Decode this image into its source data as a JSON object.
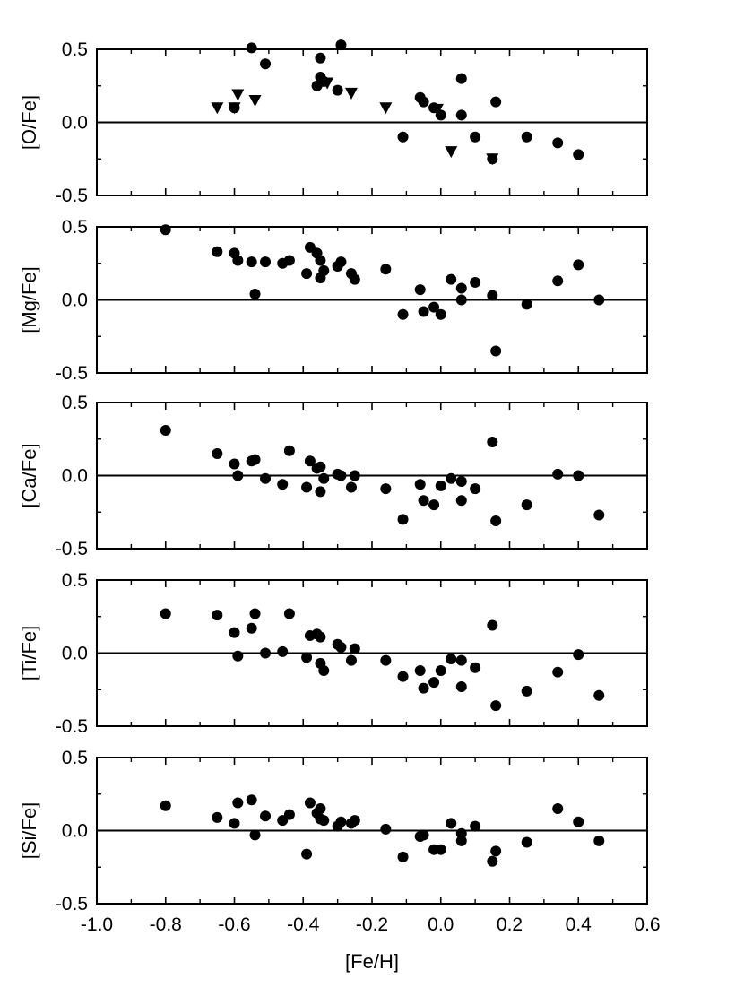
{
  "chart_data": {
    "type": "scatter",
    "shared_x": {
      "label": "[Fe/H]",
      "range": [
        -1.0,
        0.6
      ],
      "ticks": [
        -1.0,
        -0.8,
        -0.6,
        -0.4,
        -0.2,
        0.0,
        0.2,
        0.4,
        0.6
      ],
      "tick_labels": [
        "-1.0",
        "-0.8",
        "-0.6",
        "-0.4",
        "-0.2",
        "0.0",
        "0.2",
        "0.4",
        "0.6"
      ]
    },
    "panels": [
      {
        "ylabel": "[O/Fe]",
        "ylim": [
          -0.5,
          0.5
        ],
        "yticks": [
          -0.5,
          0.0,
          0.5
        ],
        "ytick_labels": [
          "-0.5",
          "0.0",
          "0.5"
        ],
        "zero_line": true,
        "series": [
          {
            "marker": "circle",
            "points": [
              [
                -0.55,
                0.51
              ],
              [
                -0.51,
                0.4
              ],
              [
                -0.6,
                0.1
              ],
              [
                -0.35,
                0.44
              ],
              [
                -0.35,
                0.31
              ],
              [
                -0.36,
                0.25
              ],
              [
                -0.34,
                0.28
              ],
              [
                -0.29,
                0.53
              ],
              [
                -0.3,
                0.22
              ],
              [
                -0.11,
                -0.1
              ],
              [
                -0.06,
                0.17
              ],
              [
                -0.05,
                0.14
              ],
              [
                -0.02,
                0.1
              ],
              [
                0.0,
                0.05
              ],
              [
                0.06,
                0.3
              ],
              [
                0.06,
                0.05
              ],
              [
                0.1,
                -0.1
              ],
              [
                0.16,
                0.14
              ],
              [
                0.15,
                -0.25
              ],
              [
                0.25,
                -0.1
              ],
              [
                0.34,
                -0.14
              ],
              [
                0.4,
                -0.22
              ]
            ]
          },
          {
            "marker": "triangle-down",
            "points": [
              [
                -0.65,
                0.1
              ],
              [
                -0.6,
                0.1
              ],
              [
                -0.59,
                0.19
              ],
              [
                -0.54,
                0.15
              ],
              [
                -0.33,
                0.27
              ],
              [
                -0.26,
                0.2
              ],
              [
                -0.16,
                0.1
              ],
              [
                -0.01,
                0.09
              ],
              [
                0.03,
                -0.2
              ],
              [
                0.15,
                -0.25
              ]
            ]
          }
        ]
      },
      {
        "ylabel": "[Mg/Fe]",
        "ylim": [
          -0.5,
          0.5
        ],
        "yticks": [
          -0.5,
          0.0,
          0.5
        ],
        "ytick_labels": [
          "-0.5",
          "0.0",
          "0.5"
        ],
        "zero_line": true,
        "series": [
          {
            "marker": "circle",
            "points": [
              [
                -0.8,
                0.48
              ],
              [
                -0.65,
                0.33
              ],
              [
                -0.6,
                0.32
              ],
              [
                -0.59,
                0.27
              ],
              [
                -0.55,
                0.26
              ],
              [
                -0.54,
                0.04
              ],
              [
                -0.51,
                0.26
              ],
              [
                -0.46,
                0.25
              ],
              [
                -0.44,
                0.27
              ],
              [
                -0.39,
                0.18
              ],
              [
                -0.38,
                0.36
              ],
              [
                -0.36,
                0.32
              ],
              [
                -0.35,
                0.27
              ],
              [
                -0.35,
                0.15
              ],
              [
                -0.34,
                0.2
              ],
              [
                -0.3,
                0.23
              ],
              [
                -0.29,
                0.26
              ],
              [
                -0.26,
                0.18
              ],
              [
                -0.25,
                0.14
              ],
              [
                -0.16,
                0.21
              ],
              [
                -0.11,
                -0.1
              ],
              [
                -0.06,
                0.07
              ],
              [
                -0.05,
                -0.08
              ],
              [
                -0.02,
                -0.05
              ],
              [
                0.0,
                -0.1
              ],
              [
                0.03,
                0.14
              ],
              [
                0.06,
                0.08
              ],
              [
                0.06,
                0.0
              ],
              [
                0.1,
                0.12
              ],
              [
                0.15,
                0.03
              ],
              [
                0.16,
                -0.35
              ],
              [
                0.25,
                -0.03
              ],
              [
                0.34,
                0.13
              ],
              [
                0.4,
                0.24
              ],
              [
                0.46,
                0.0
              ]
            ]
          }
        ]
      },
      {
        "ylabel": "[Ca/Fe]",
        "ylim": [
          -0.5,
          0.5
        ],
        "yticks": [
          -0.5,
          0.0,
          0.5
        ],
        "ytick_labels": [
          "-0.5",
          "0.0",
          "0.5"
        ],
        "zero_line": true,
        "series": [
          {
            "marker": "circle",
            "points": [
              [
                -0.8,
                0.31
              ],
              [
                -0.65,
                0.15
              ],
              [
                -0.6,
                0.08
              ],
              [
                -0.59,
                0.0
              ],
              [
                -0.55,
                0.1
              ],
              [
                -0.54,
                0.11
              ],
              [
                -0.51,
                -0.02
              ],
              [
                -0.46,
                -0.06
              ],
              [
                -0.44,
                0.17
              ],
              [
                -0.39,
                -0.08
              ],
              [
                -0.38,
                0.1
              ],
              [
                -0.36,
                0.05
              ],
              [
                -0.35,
                0.06
              ],
              [
                -0.35,
                -0.11
              ],
              [
                -0.34,
                -0.02
              ],
              [
                -0.3,
                0.01
              ],
              [
                -0.29,
                0.0
              ],
              [
                -0.26,
                -0.08
              ],
              [
                -0.25,
                0.0
              ],
              [
                -0.16,
                -0.09
              ],
              [
                -0.11,
                -0.3
              ],
              [
                -0.06,
                -0.06
              ],
              [
                -0.05,
                -0.17
              ],
              [
                -0.02,
                -0.2
              ],
              [
                0.0,
                -0.07
              ],
              [
                0.03,
                -0.02
              ],
              [
                0.06,
                -0.04
              ],
              [
                0.06,
                -0.17
              ],
              [
                0.1,
                -0.09
              ],
              [
                0.15,
                0.23
              ],
              [
                0.16,
                -0.31
              ],
              [
                0.25,
                -0.2
              ],
              [
                0.34,
                0.01
              ],
              [
                0.4,
                0.0
              ],
              [
                0.46,
                -0.27
              ]
            ]
          }
        ]
      },
      {
        "ylabel": "[Ti/Fe]",
        "ylim": [
          -0.5,
          0.5
        ],
        "yticks": [
          -0.5,
          0.0,
          0.5
        ],
        "ytick_labels": [
          "-0.5",
          "0.0",
          "0.5"
        ],
        "zero_line": true,
        "series": [
          {
            "marker": "circle",
            "points": [
              [
                -0.8,
                0.27
              ],
              [
                -0.65,
                0.26
              ],
              [
                -0.6,
                0.14
              ],
              [
                -0.59,
                -0.02
              ],
              [
                -0.55,
                0.17
              ],
              [
                -0.54,
                0.27
              ],
              [
                -0.51,
                0.0
              ],
              [
                -0.46,
                0.01
              ],
              [
                -0.44,
                0.27
              ],
              [
                -0.39,
                -0.03
              ],
              [
                -0.38,
                0.12
              ],
              [
                -0.36,
                0.13
              ],
              [
                -0.35,
                -0.07
              ],
              [
                -0.35,
                0.11
              ],
              [
                -0.34,
                -0.12
              ],
              [
                -0.3,
                0.06
              ],
              [
                -0.29,
                0.04
              ],
              [
                -0.26,
                -0.05
              ],
              [
                -0.25,
                0.03
              ],
              [
                -0.16,
                -0.05
              ],
              [
                -0.11,
                -0.16
              ],
              [
                -0.06,
                -0.12
              ],
              [
                -0.05,
                -0.24
              ],
              [
                -0.02,
                -0.2
              ],
              [
                0.0,
                -0.12
              ],
              [
                0.03,
                -0.04
              ],
              [
                0.06,
                -0.05
              ],
              [
                0.06,
                -0.23
              ],
              [
                0.1,
                -0.1
              ],
              [
                0.15,
                0.19
              ],
              [
                0.16,
                -0.36
              ],
              [
                0.25,
                -0.26
              ],
              [
                0.34,
                -0.13
              ],
              [
                0.4,
                -0.01
              ],
              [
                0.46,
                -0.29
              ]
            ]
          }
        ]
      },
      {
        "ylabel": "[Si/Fe]",
        "ylim": [
          -0.5,
          0.5
        ],
        "yticks": [
          -0.5,
          0.0,
          0.5
        ],
        "ytick_labels": [
          "-0.5",
          "0.0",
          "0.5"
        ],
        "zero_line": true,
        "series": [
          {
            "marker": "circle",
            "points": [
              [
                -0.8,
                0.17
              ],
              [
                -0.65,
                0.09
              ],
              [
                -0.6,
                0.05
              ],
              [
                -0.59,
                0.19
              ],
              [
                -0.55,
                0.21
              ],
              [
                -0.54,
                -0.03
              ],
              [
                -0.51,
                0.1
              ],
              [
                -0.46,
                0.07
              ],
              [
                -0.44,
                0.11
              ],
              [
                -0.39,
                -0.16
              ],
              [
                -0.38,
                0.19
              ],
              [
                -0.36,
                0.12
              ],
              [
                -0.35,
                0.15
              ],
              [
                -0.35,
                0.08
              ],
              [
                -0.34,
                0.07
              ],
              [
                -0.3,
                0.03
              ],
              [
                -0.29,
                0.06
              ],
              [
                -0.26,
                0.05
              ],
              [
                -0.25,
                0.07
              ],
              [
                -0.16,
                0.01
              ],
              [
                -0.11,
                -0.18
              ],
              [
                -0.06,
                -0.04
              ],
              [
                -0.05,
                -0.03
              ],
              [
                -0.02,
                -0.13
              ],
              [
                0.0,
                -0.13
              ],
              [
                0.03,
                0.05
              ],
              [
                0.06,
                -0.02
              ],
              [
                0.06,
                -0.07
              ],
              [
                0.1,
                0.03
              ],
              [
                0.15,
                -0.21
              ],
              [
                0.16,
                -0.14
              ],
              [
                0.25,
                -0.08
              ],
              [
                0.34,
                0.15
              ],
              [
                0.4,
                0.06
              ],
              [
                0.46,
                -0.07
              ]
            ]
          }
        ]
      }
    ]
  }
}
